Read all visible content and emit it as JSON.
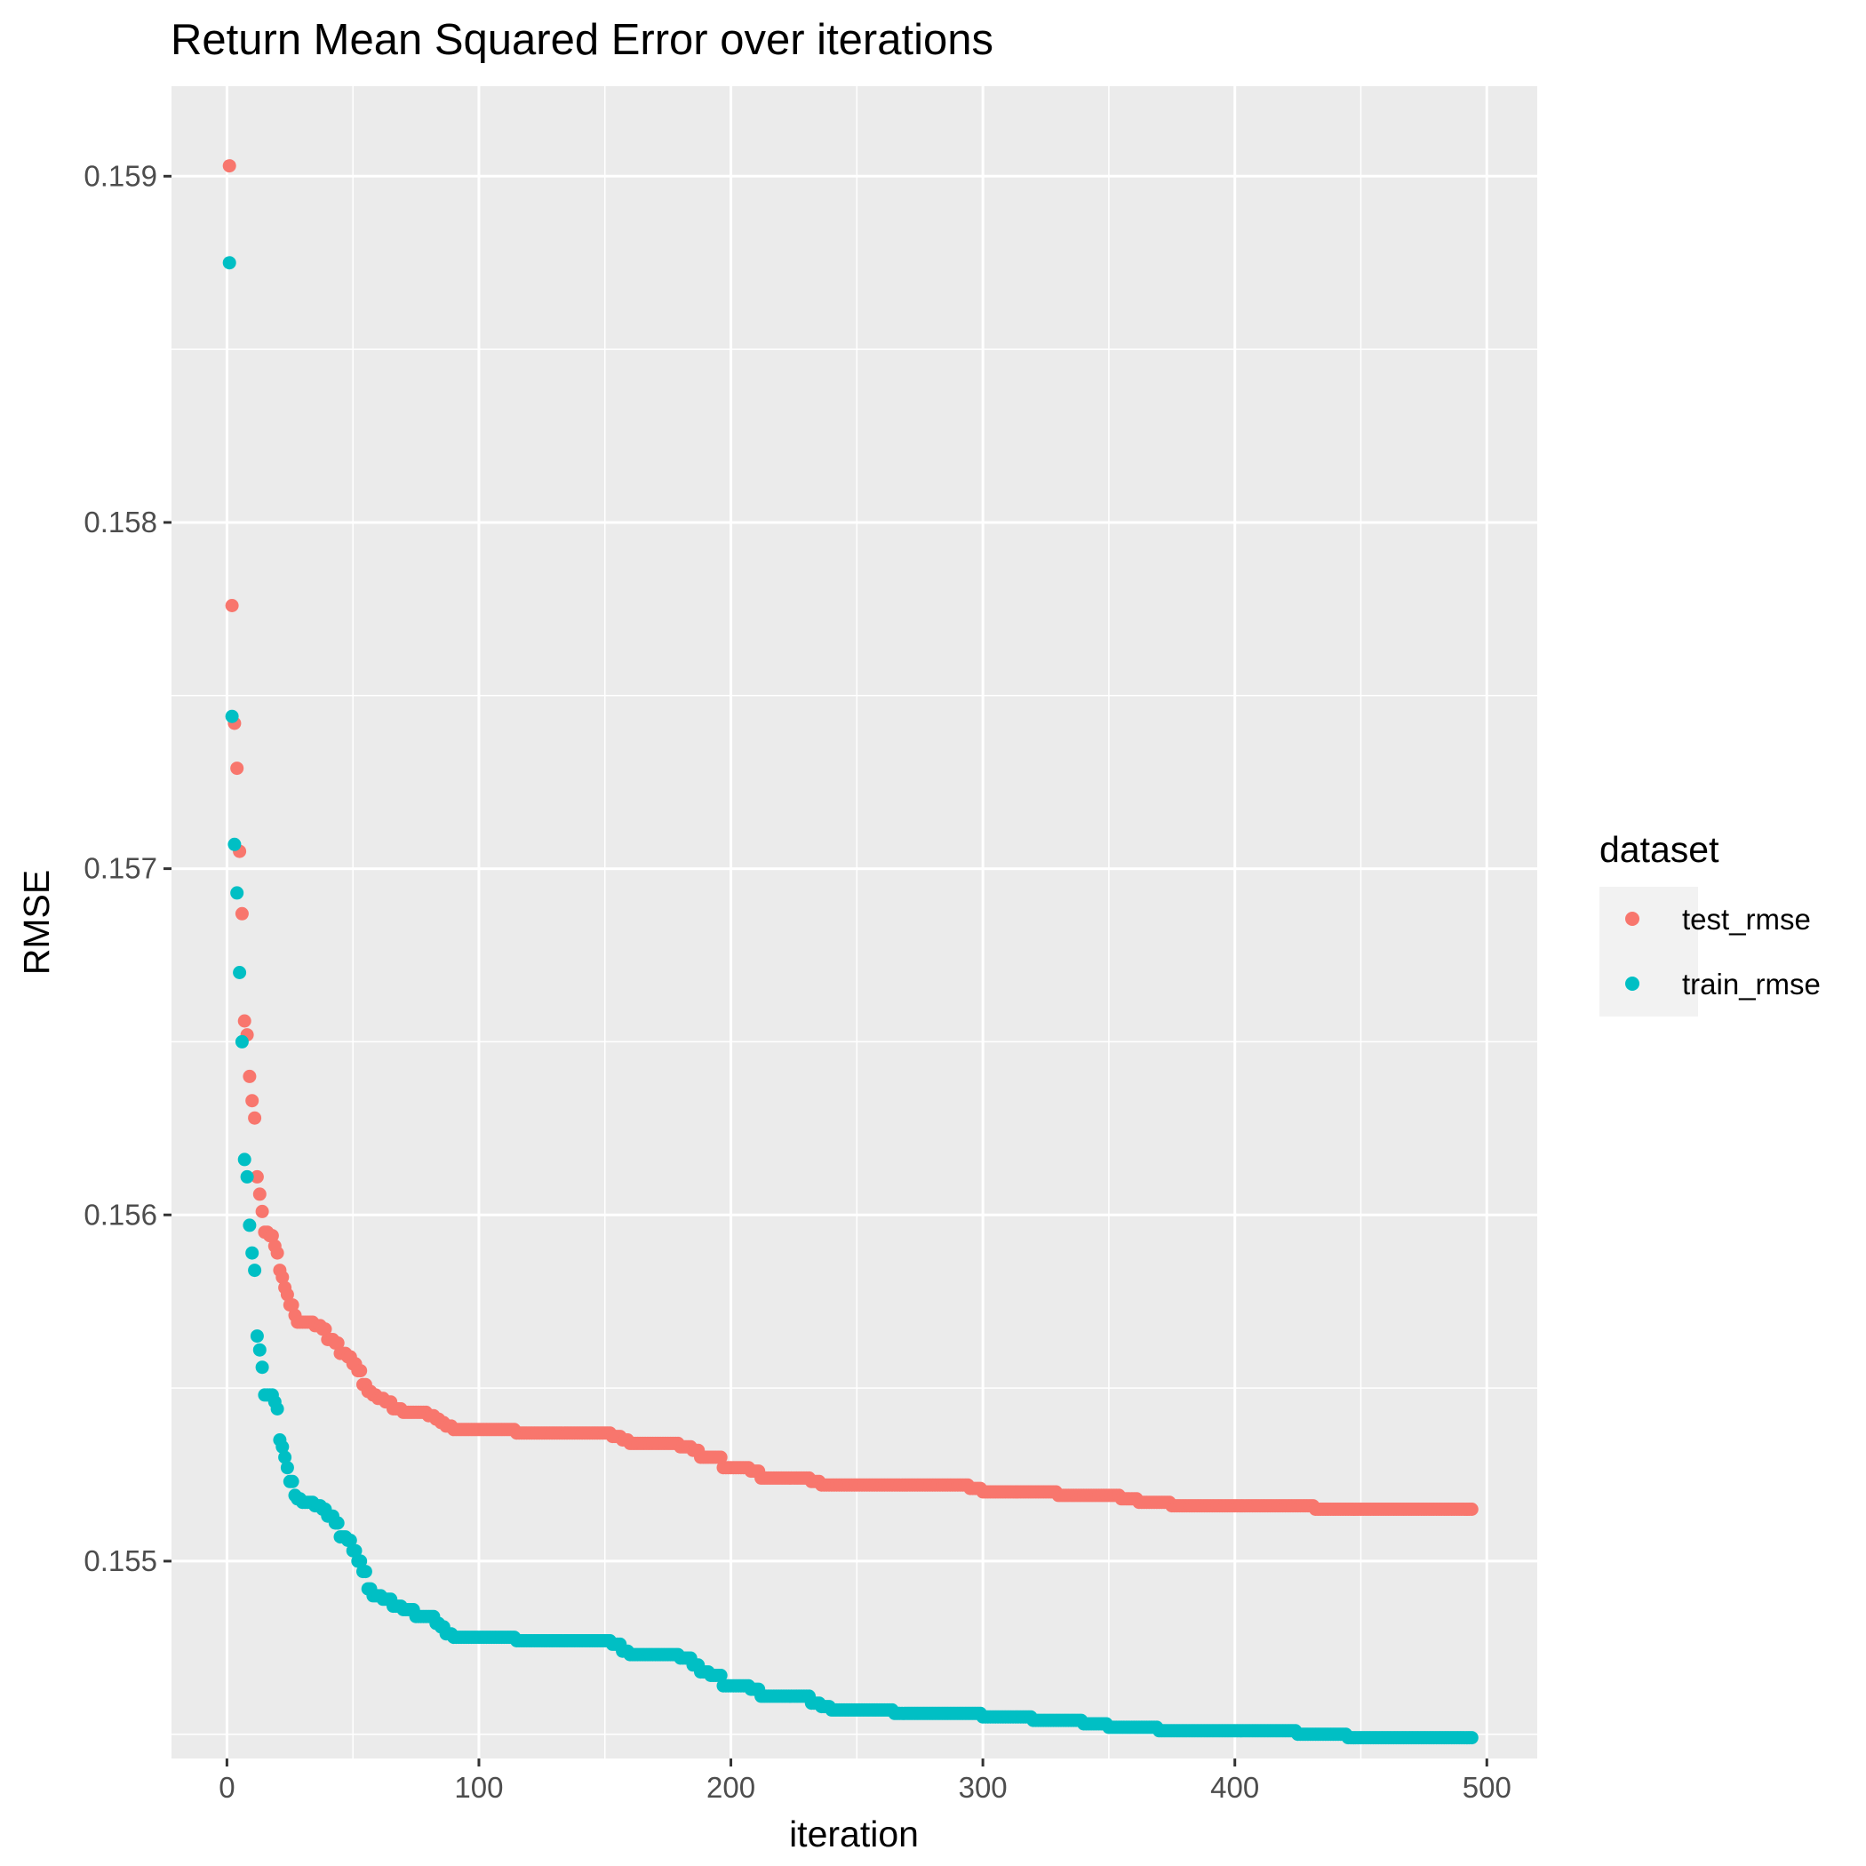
{
  "chart_data": {
    "type": "scatter",
    "title": "Return Mean Squared Error over iterations",
    "xlabel": "iteration",
    "ylabel": "RMSE",
    "xlim": [
      -22,
      520
    ],
    "ylim": [
      0.15443,
      0.15926
    ],
    "x_ticks": [
      {
        "value": 0,
        "label": "0"
      },
      {
        "value": 100,
        "label": "100"
      },
      {
        "value": 200,
        "label": "200"
      },
      {
        "value": 300,
        "label": "300"
      },
      {
        "value": 400,
        "label": "400"
      },
      {
        "value": 500,
        "label": "500"
      }
    ],
    "y_ticks": [
      {
        "value": 0.155,
        "label": "0.155"
      },
      {
        "value": 0.156,
        "label": "0.156"
      },
      {
        "value": 0.157,
        "label": "0.157"
      },
      {
        "value": 0.158,
        "label": "0.158"
      },
      {
        "value": 0.159,
        "label": "0.159"
      }
    ],
    "x_minor": [
      50,
      150,
      250,
      350,
      450
    ],
    "y_minor": [
      0.1545,
      0.1555,
      0.1565,
      0.1575,
      0.1585
    ],
    "grid": true,
    "legend": {
      "title": "dataset",
      "position": "right"
    },
    "series": [
      {
        "name": "test_rmse",
        "color": "#F8766D",
        "points": [
          [
            1,
            0.15903
          ],
          [
            2,
            0.15776
          ],
          [
            3,
            0.15742
          ],
          [
            4,
            0.15729
          ],
          [
            5,
            0.15705
          ],
          [
            6,
            0.15687
          ],
          [
            7,
            0.15656
          ],
          [
            8,
            0.15652
          ],
          [
            9,
            0.1564
          ],
          [
            10,
            0.15633
          ],
          [
            11,
            0.15628
          ],
          [
            12,
            0.15611
          ],
          [
            13,
            0.15606
          ],
          [
            14,
            0.15601
          ],
          [
            15,
            0.15595
          ],
          [
            17,
            0.15594
          ],
          [
            19,
            0.15591
          ],
          [
            20,
            0.15589
          ],
          [
            21,
            0.15584
          ],
          [
            22,
            0.15582
          ],
          [
            23,
            0.15579
          ],
          [
            24,
            0.15577
          ],
          [
            25,
            0.15574
          ],
          [
            27,
            0.15571
          ],
          [
            28,
            0.15569
          ],
          [
            30,
            0.15569
          ],
          [
            35,
            0.15568
          ],
          [
            38,
            0.15567
          ],
          [
            40,
            0.15564
          ],
          [
            43,
            0.15563
          ],
          [
            45,
            0.1556
          ],
          [
            48,
            0.15559
          ],
          [
            50,
            0.15557
          ],
          [
            52,
            0.15555
          ],
          [
            54,
            0.15551
          ],
          [
            56,
            0.15549
          ],
          [
            58,
            0.15548
          ],
          [
            60,
            0.15547
          ],
          [
            63,
            0.15546
          ],
          [
            66,
            0.15544
          ],
          [
            70,
            0.15543
          ],
          [
            75,
            0.15543
          ],
          [
            80,
            0.15542
          ],
          [
            83,
            0.15541
          ],
          [
            85,
            0.1554
          ],
          [
            87,
            0.15539
          ],
          [
            90,
            0.15538
          ],
          [
            100,
            0.15538
          ],
          [
            110,
            0.15538
          ],
          [
            115,
            0.15537
          ],
          [
            120,
            0.15537
          ],
          [
            130,
            0.15537
          ],
          [
            140,
            0.15537
          ],
          [
            150,
            0.15537
          ],
          [
            153,
            0.15536
          ],
          [
            157,
            0.15535
          ],
          [
            160,
            0.15534
          ],
          [
            165,
            0.15534
          ],
          [
            170,
            0.15534
          ],
          [
            175,
            0.15534
          ],
          [
            180,
            0.15533
          ],
          [
            185,
            0.15532
          ],
          [
            188,
            0.1553
          ],
          [
            192,
            0.1553
          ],
          [
            196,
            0.1553
          ],
          [
            197,
            0.15527
          ],
          [
            200,
            0.15527
          ],
          [
            205,
            0.15527
          ],
          [
            208,
            0.15526
          ],
          [
            212,
            0.15524
          ],
          [
            218,
            0.15524
          ],
          [
            225,
            0.15524
          ],
          [
            232,
            0.15523
          ],
          [
            236,
            0.15522
          ],
          [
            240,
            0.15522
          ],
          [
            245,
            0.15522
          ],
          [
            255,
            0.15522
          ],
          [
            265,
            0.15522
          ],
          [
            275,
            0.15522
          ],
          [
            285,
            0.15522
          ],
          [
            295,
            0.15521
          ],
          [
            300,
            0.1552
          ],
          [
            310,
            0.1552
          ],
          [
            320,
            0.1552
          ],
          [
            330,
            0.15519
          ],
          [
            340,
            0.15519
          ],
          [
            350,
            0.15519
          ],
          [
            355,
            0.15518
          ],
          [
            362,
            0.15517
          ],
          [
            370,
            0.15517
          ],
          [
            375,
            0.15516
          ],
          [
            385,
            0.15516
          ],
          [
            395,
            0.15516
          ],
          [
            405,
            0.15516
          ],
          [
            415,
            0.15516
          ],
          [
            425,
            0.15516
          ],
          [
            432,
            0.15515
          ],
          [
            440,
            0.15515
          ],
          [
            445,
            0.15515
          ],
          [
            455,
            0.15515
          ],
          [
            465,
            0.15515
          ],
          [
            475,
            0.15515
          ],
          [
            485,
            0.15515
          ],
          [
            494,
            0.15515
          ]
        ]
      },
      {
        "name": "train_rmse",
        "color": "#00BFC4",
        "points": [
          [
            1,
            0.15875
          ],
          [
            2,
            0.15744
          ],
          [
            3,
            0.15707
          ],
          [
            4,
            0.15693
          ],
          [
            5,
            0.1567
          ],
          [
            6,
            0.1565
          ],
          [
            7,
            0.15616
          ],
          [
            8,
            0.15611
          ],
          [
            9,
            0.15597
          ],
          [
            10,
            0.15589
          ],
          [
            11,
            0.15584
          ],
          [
            12,
            0.15565
          ],
          [
            13,
            0.15561
          ],
          [
            14,
            0.15556
          ],
          [
            15,
            0.15548
          ],
          [
            17,
            0.15548
          ],
          [
            19,
            0.15546
          ],
          [
            20,
            0.15544
          ],
          [
            21,
            0.15535
          ],
          [
            22,
            0.15533
          ],
          [
            23,
            0.1553
          ],
          [
            24,
            0.15527
          ],
          [
            25,
            0.15523
          ],
          [
            27,
            0.15519
          ],
          [
            28,
            0.15518
          ],
          [
            30,
            0.15517
          ],
          [
            35,
            0.15516
          ],
          [
            38,
            0.15515
          ],
          [
            40,
            0.15513
          ],
          [
            43,
            0.15511
          ],
          [
            45,
            0.15507
          ],
          [
            48,
            0.15506
          ],
          [
            50,
            0.15503
          ],
          [
            52,
            0.155
          ],
          [
            54,
            0.15497
          ],
          [
            56,
            0.15492
          ],
          [
            58,
            0.1549
          ],
          [
            62,
            0.15489
          ],
          [
            66,
            0.15487
          ],
          [
            70,
            0.15486
          ],
          [
            75,
            0.15484
          ],
          [
            80,
            0.15484
          ],
          [
            83,
            0.15482
          ],
          [
            85,
            0.15481
          ],
          [
            87,
            0.15479
          ],
          [
            90,
            0.15478
          ],
          [
            100,
            0.15478
          ],
          [
            110,
            0.15478
          ],
          [
            115,
            0.15477
          ],
          [
            120,
            0.15477
          ],
          [
            130,
            0.15477
          ],
          [
            140,
            0.15477
          ],
          [
            150,
            0.15477
          ],
          [
            153,
            0.15476
          ],
          [
            157,
            0.15474
          ],
          [
            160,
            0.15473
          ],
          [
            165,
            0.15473
          ],
          [
            170,
            0.15473
          ],
          [
            175,
            0.15473
          ],
          [
            180,
            0.15472
          ],
          [
            185,
            0.1547
          ],
          [
            188,
            0.15468
          ],
          [
            192,
            0.15467
          ],
          [
            196,
            0.15467
          ],
          [
            197,
            0.15464
          ],
          [
            200,
            0.15464
          ],
          [
            205,
            0.15464
          ],
          [
            208,
            0.15463
          ],
          [
            212,
            0.15461
          ],
          [
            218,
            0.15461
          ],
          [
            225,
            0.15461
          ],
          [
            232,
            0.15459
          ],
          [
            236,
            0.15458
          ],
          [
            240,
            0.15457
          ],
          [
            245,
            0.15457
          ],
          [
            255,
            0.15457
          ],
          [
            265,
            0.15456
          ],
          [
            275,
            0.15456
          ],
          [
            285,
            0.15456
          ],
          [
            295,
            0.15456
          ],
          [
            300,
            0.15455
          ],
          [
            310,
            0.15455
          ],
          [
            320,
            0.15454
          ],
          [
            330,
            0.15454
          ],
          [
            340,
            0.15453
          ],
          [
            350,
            0.15452
          ],
          [
            355,
            0.15452
          ],
          [
            362,
            0.15452
          ],
          [
            370,
            0.15451
          ],
          [
            375,
            0.15451
          ],
          [
            385,
            0.15451
          ],
          [
            395,
            0.15451
          ],
          [
            405,
            0.15451
          ],
          [
            415,
            0.15451
          ],
          [
            425,
            0.1545
          ],
          [
            432,
            0.1545
          ],
          [
            440,
            0.1545
          ],
          [
            445,
            0.15449
          ],
          [
            455,
            0.15449
          ],
          [
            465,
            0.15449
          ],
          [
            475,
            0.15449
          ],
          [
            485,
            0.15449
          ],
          [
            494,
            0.15449
          ]
        ]
      }
    ]
  }
}
